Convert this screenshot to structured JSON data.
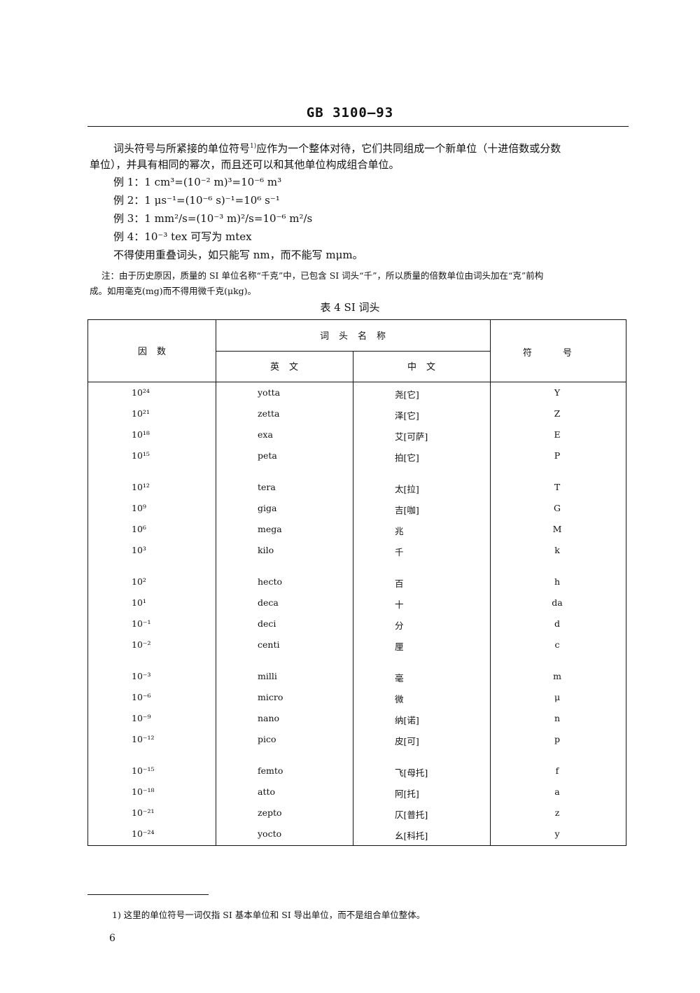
{
  "header": {
    "title": "GB 3100—93"
  },
  "body": {
    "para1_line1": "词头符号与所紧接的单位符号",
    "para1_fnref": "1)",
    "para1_line1b": "应作为一个整体对待，它们共同组成一个新单位（十进倍数或分数",
    "para1_line2": "单位），并具有相同的幂次，而且还可以和其他单位构成组合单位。",
    "examples": [
      "例 1：1 cm³=(10⁻² m)³=10⁻⁶ m³",
      "例 2：1 μs⁻¹=(10⁻⁶ s)⁻¹=10⁶ s⁻¹",
      "例 3：1 mm²/s=(10⁻³ m)²/s=10⁻⁶ m²/s",
      "例 4：10⁻³ tex 可写为 mtex"
    ],
    "rule": "不得使用重叠词头，如只能写 nm，而不能写 mμm。",
    "note_line1": "注：由于历史原因，质量的 SI 单位名称“千克”中，已包含 SI 词头“千”，所以质量的倍数单位由词头加在“克”前构",
    "note_line2": "成。如用毫克(mg)而不得用微千克(μkg)。"
  },
  "table": {
    "caption": "表 4  SI 词头",
    "headers": {
      "factor": "因数",
      "name": "词头名称",
      "english": "英文",
      "chinese": "中文",
      "symbol": "符号"
    },
    "rows": [
      {
        "factor": "10²⁴",
        "en": "yotta",
        "zh": "尧[它]",
        "sym": "Y"
      },
      {
        "factor": "10²¹",
        "en": "zetta",
        "zh": "泽[它]",
        "sym": "Z"
      },
      {
        "factor": "10¹⁸",
        "en": "exa",
        "zh": "艾[可萨]",
        "sym": "E"
      },
      {
        "factor": "10¹⁵",
        "en": "peta",
        "zh": "拍[它]",
        "sym": "P"
      },
      {
        "factor": "10¹²",
        "en": "tera",
        "zh": "太[拉]",
        "sym": "T"
      },
      {
        "factor": "10⁹",
        "en": "giga",
        "zh": "吉[咖]",
        "sym": "G"
      },
      {
        "factor": "10⁶",
        "en": "mega",
        "zh": "兆",
        "sym": "M"
      },
      {
        "factor": "10³",
        "en": "kilo",
        "zh": "千",
        "sym": "k"
      },
      {
        "factor": "10²",
        "en": "hecto",
        "zh": "百",
        "sym": "h"
      },
      {
        "factor": "10¹",
        "en": "deca",
        "zh": "十",
        "sym": "da"
      },
      {
        "factor": "10⁻¹",
        "en": "deci",
        "zh": "分",
        "sym": "d"
      },
      {
        "factor": "10⁻²",
        "en": "centi",
        "zh": "厘",
        "sym": "c"
      },
      {
        "factor": "10⁻³",
        "en": "milli",
        "zh": "毫",
        "sym": "m"
      },
      {
        "factor": "10⁻⁶",
        "en": "micro",
        "zh": "微",
        "sym": "μ"
      },
      {
        "factor": "10⁻⁹",
        "en": "nano",
        "zh": "纳[诺]",
        "sym": "n"
      },
      {
        "factor": "10⁻¹²",
        "en": "pico",
        "zh": "皮[可]",
        "sym": "p"
      },
      {
        "factor": "10⁻¹⁵",
        "en": "femto",
        "zh": "飞[母托]",
        "sym": "f"
      },
      {
        "factor": "10⁻¹⁸",
        "en": "atto",
        "zh": "阿[托]",
        "sym": "a"
      },
      {
        "factor": "10⁻²¹",
        "en": "zepto",
        "zh": "仄[普托]",
        "sym": "z"
      },
      {
        "factor": "10⁻²⁴",
        "en": "yocto",
        "zh": "幺[科托]",
        "sym": "y"
      }
    ]
  },
  "footnote": {
    "text": "1)   这里的单位符号一词仅指 SI 基本单位和 SI 导出单位，而不是组合单位整体。"
  },
  "page_number": "6"
}
